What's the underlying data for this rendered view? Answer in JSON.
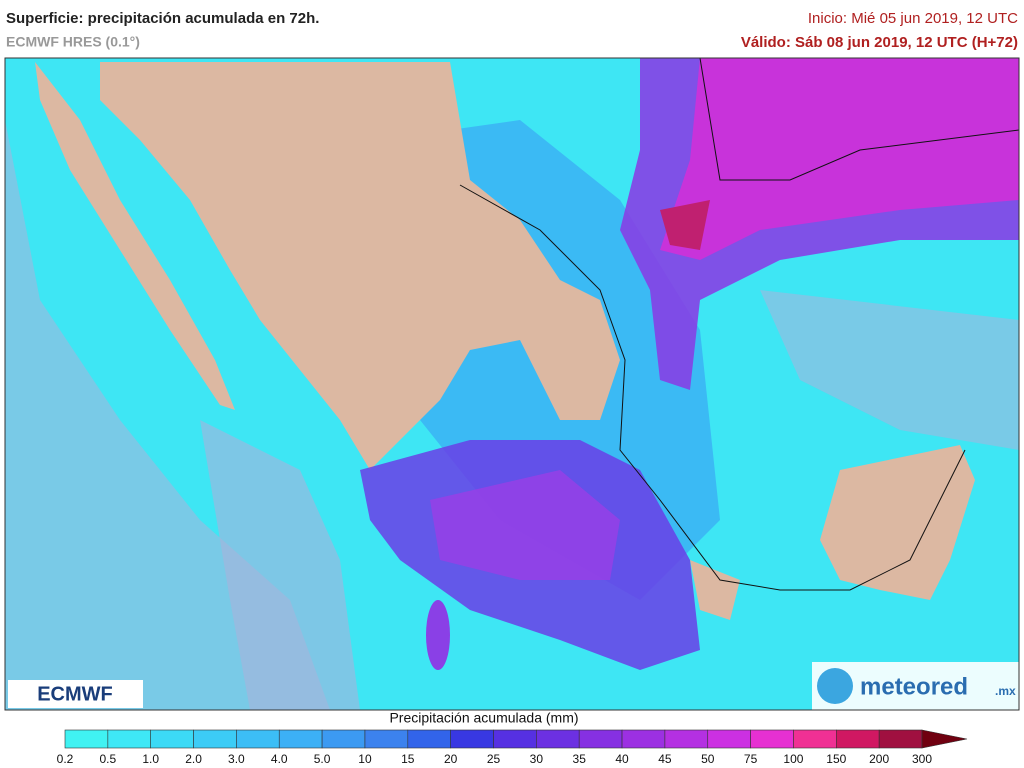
{
  "header": {
    "title": "Superficie: precipitación acumulada en 72h.",
    "model": "ECMWF HRES (0.1°)",
    "init": "Inicio: Mié 05 jun 2019, 12 UTC",
    "valid": "Válido: Sáb 08 jun 2019, 12 UTC (H+72)"
  },
  "logos": {
    "left": "ECMWF",
    "right": "meteored",
    "right_suffix": ".mx"
  },
  "colorbar": {
    "title": "Precipitación acumulada (mm)",
    "labels": [
      "0.2",
      "0.5",
      "1.0",
      "2.0",
      "3.0",
      "4.0",
      "5.0",
      "10",
      "15",
      "20",
      "25",
      "30",
      "35",
      "40",
      "45",
      "50",
      "75",
      "100",
      "150",
      "200",
      "300"
    ],
    "colors": [
      "#40f2f2",
      "#3ee8f6",
      "#3cdaf6",
      "#3cccf6",
      "#3cbef6",
      "#3cb0f6",
      "#3c9af2",
      "#3c82ee",
      "#3264ea",
      "#3838e2",
      "#5630e2",
      "#6c30e2",
      "#8630e2",
      "#9c30e2",
      "#b430e2",
      "#cc30e2",
      "#e630d2",
      "#f03094",
      "#d01862",
      "#a01040",
      "#700010"
    ]
  }
}
